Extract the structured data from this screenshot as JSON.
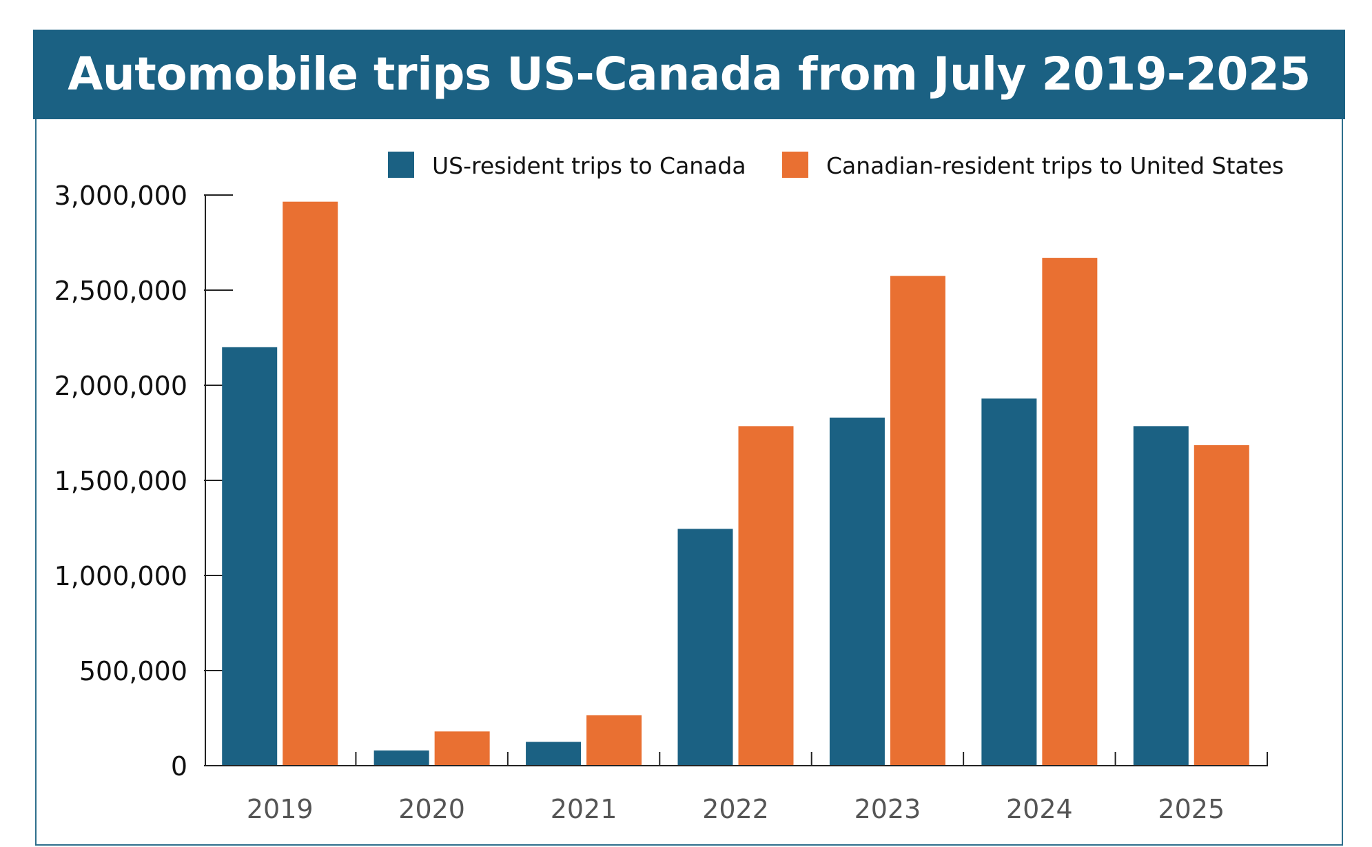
{
  "chart_data": {
    "type": "bar",
    "title": "Automobile trips US-Canada from July 2019-2025",
    "categories": [
      "2019",
      "2020",
      "2021",
      "2022",
      "2023",
      "2024",
      "2025"
    ],
    "series": [
      {
        "name": "US-resident trips to Canada",
        "color": "#1b6183",
        "values": [
          2200000,
          80000,
          125000,
          1245000,
          1830000,
          1930000,
          1785000
        ]
      },
      {
        "name": "Canadian-resident trips to United States",
        "color": "#e97032",
        "values": [
          2965000,
          180000,
          265000,
          1785000,
          2575000,
          2670000,
          1685000
        ]
      }
    ],
    "yticks": [
      "0",
      "500,000",
      "1,000,000",
      "1,500,000",
      "2,000,000",
      "2,500,000",
      "3,000,000"
    ],
    "ylim": [
      0,
      3000000
    ],
    "xlabel": "",
    "ylabel": "",
    "grid": false,
    "legend_position": "top-right"
  }
}
